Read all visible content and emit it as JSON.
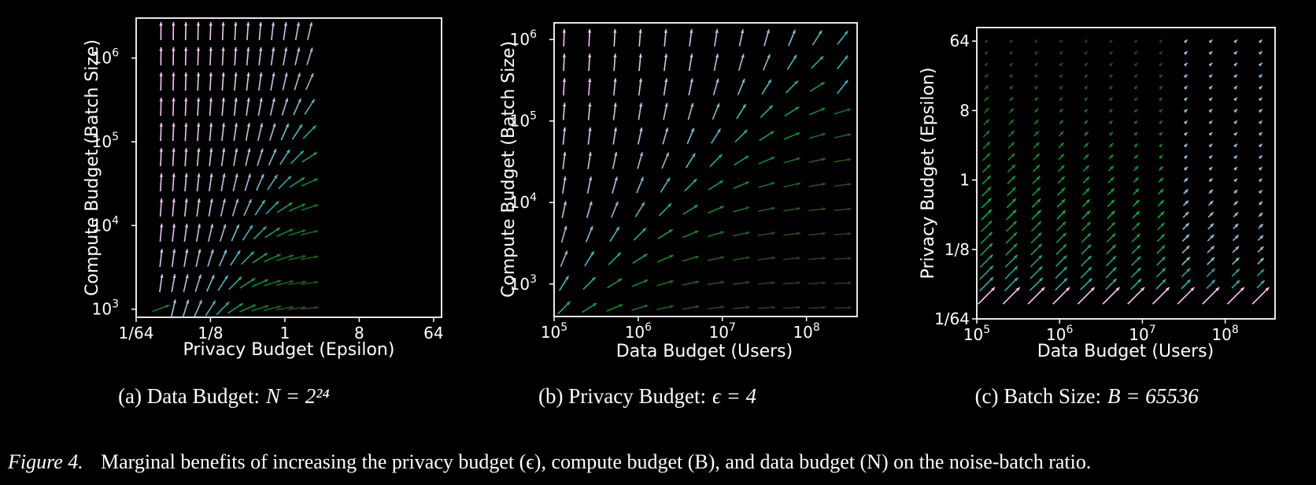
{
  "figure_caption": {
    "label": "Figure 4.",
    "text": "Marginal benefits of increasing the privacy budget (ϵ), compute budget (B), and data budget (N) on the noise-batch ratio."
  },
  "chart_data": [
    {
      "type": "quiver",
      "caption": {
        "prefix": "(a) Data Budget:",
        "math": "N = 2²⁴"
      },
      "xlabel": "Privacy Budget (Epsilon)",
      "ylabel": "Compute Budget (Batch Size)",
      "x_scale": "log2",
      "y_scale": "log10",
      "xlim": [
        0.015625,
        80
      ],
      "ylim": [
        800,
        3000000
      ],
      "xticks": [
        {
          "v": 0.015625,
          "t": "1/64"
        },
        {
          "v": 0.125,
          "t": "1/8"
        },
        {
          "v": 1,
          "t": "1"
        },
        {
          "v": 8,
          "t": "8"
        },
        {
          "v": 64,
          "t": "64"
        }
      ],
      "yticks": [
        {
          "v": 1000,
          "t": "10",
          "sup": "3"
        },
        {
          "v": 10000,
          "t": "10",
          "sup": "4"
        },
        {
          "v": 100000,
          "t": "10",
          "sup": "5"
        },
        {
          "v": 1000000,
          "t": "10",
          "sup": "6"
        }
      ],
      "x_grid_log2": [
        -5,
        1,
        0.5
      ],
      "y_grid_log2": [
        10,
        21,
        1
      ],
      "diagonal_offset": 15,
      "colors": {
        "horizontal": "#3a2a10",
        "mid": "#0f8a2a",
        "diagonal": "#2ab0b0",
        "vertical": "#ffc8f8"
      }
    },
    {
      "type": "quiver",
      "caption": {
        "prefix": "(b) Privacy Budget:",
        "math": "ϵ = 4"
      },
      "xlabel": "Data Budget (Users)",
      "ylabel": "Compute Budget (Batch Size)",
      "x_scale": "log10",
      "y_scale": "log10",
      "xlim": [
        100000,
        400000000
      ],
      "ylim": [
        400,
        1600000
      ],
      "xticks": [
        {
          "v": 100000,
          "t": "10",
          "sup": "5"
        },
        {
          "v": 1000000,
          "t": "10",
          "sup": "6"
        },
        {
          "v": 10000000,
          "t": "10",
          "sup": "7"
        },
        {
          "v": 100000000,
          "t": "10",
          "sup": "8"
        }
      ],
      "yticks": [
        {
          "v": 1000,
          "t": "10",
          "sup": "3"
        },
        {
          "v": 10000,
          "t": "10",
          "sup": "4"
        },
        {
          "v": 100000,
          "t": "10",
          "sup": "5"
        },
        {
          "v": 1000000,
          "t": "10",
          "sup": "6"
        }
      ],
      "x_grid_log2": [
        17,
        28,
        1
      ],
      "y_grid_log2": [
        9,
        20,
        1
      ],
      "diagonal_offset": -8,
      "colors": {
        "horizontal": "#3a2a10",
        "mid": "#0f8a2a",
        "diagonal": "#2ab0b0",
        "vertical": "#ffc8f8"
      }
    },
    {
      "type": "quiver",
      "caption": {
        "prefix": "(c) Batch Size:",
        "math": "B = 65536"
      },
      "xlabel": "Data Budget (Users)",
      "ylabel": "Privacy Budget (Epsilon)",
      "x_scale": "log10",
      "y_scale": "log2",
      "xlim": [
        100000,
        400000000
      ],
      "ylim": [
        0.015625,
        96
      ],
      "xticks": [
        {
          "v": 100000,
          "t": "10",
          "sup": "5"
        },
        {
          "v": 1000000,
          "t": "10",
          "sup": "6"
        },
        {
          "v": 10000000,
          "t": "10",
          "sup": "7"
        },
        {
          "v": 100000000,
          "t": "10",
          "sup": "8"
        }
      ],
      "yticks": [
        {
          "v": 0.015625,
          "t": "1/64"
        },
        {
          "v": 0.125,
          "t": "1/8"
        },
        {
          "v": 1,
          "t": "1"
        },
        {
          "v": 8,
          "t": "8"
        },
        {
          "v": 64,
          "t": "64"
        }
      ],
      "x_grid_log2": [
        17,
        28,
        1
      ],
      "y_grid_log2": [
        -5,
        6,
        0.5
      ],
      "colors": {
        "horizontal": "#3a2a10",
        "mid": "#0f8a2a",
        "diagonal": "#2ab0b0",
        "vertical": "#ffc8f8"
      }
    }
  ]
}
